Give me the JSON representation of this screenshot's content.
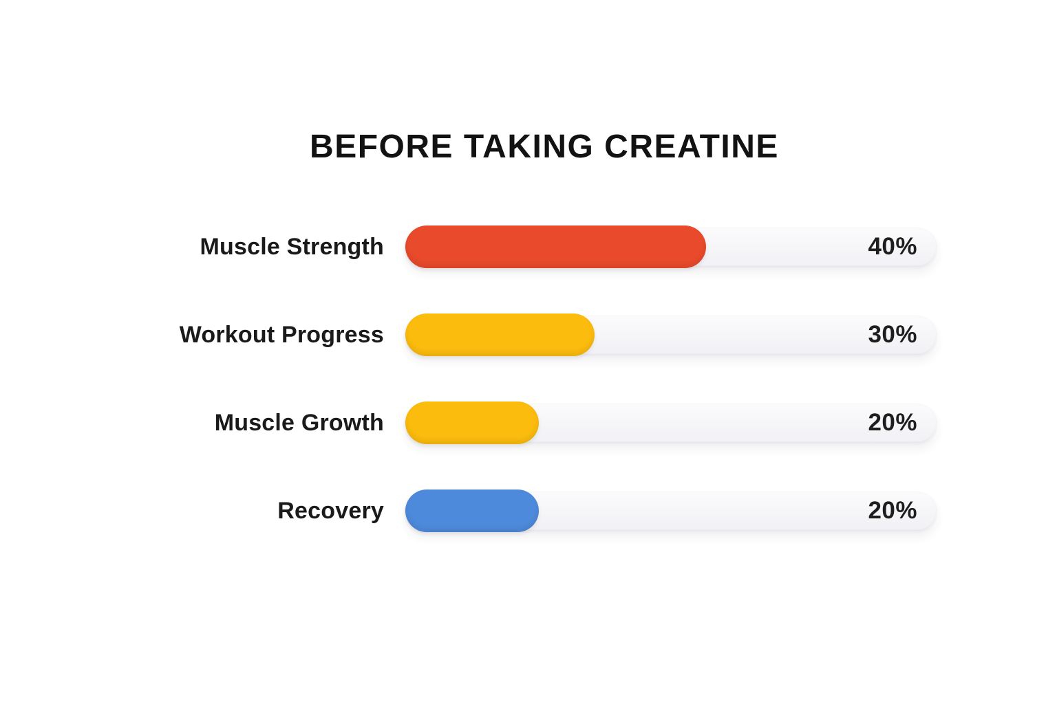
{
  "title": "BEFORE TAKING CREATINE",
  "chart_data": {
    "type": "bar",
    "orientation": "horizontal",
    "title": "BEFORE TAKING CREATINE",
    "categories": [
      "Muscle Strength",
      "Workout Progress",
      "Muscle Growth",
      "Recovery"
    ],
    "values": [
      40,
      30,
      20,
      20
    ],
    "value_labels": [
      "40%",
      "30%",
      "20%",
      "20%"
    ],
    "bar_colors": [
      "#E94A2C",
      "#FBBC0E",
      "#FBBC0E",
      "#4E8ADB"
    ],
    "track_color": "#F2F2F5",
    "value_range": [
      0,
      100
    ],
    "bar_fill_fractions": [
      0.566,
      0.356,
      0.251,
      0.251
    ],
    "grid": false,
    "legend_position": "none",
    "value_label_position": "inside-right",
    "category_label_position": "left"
  }
}
